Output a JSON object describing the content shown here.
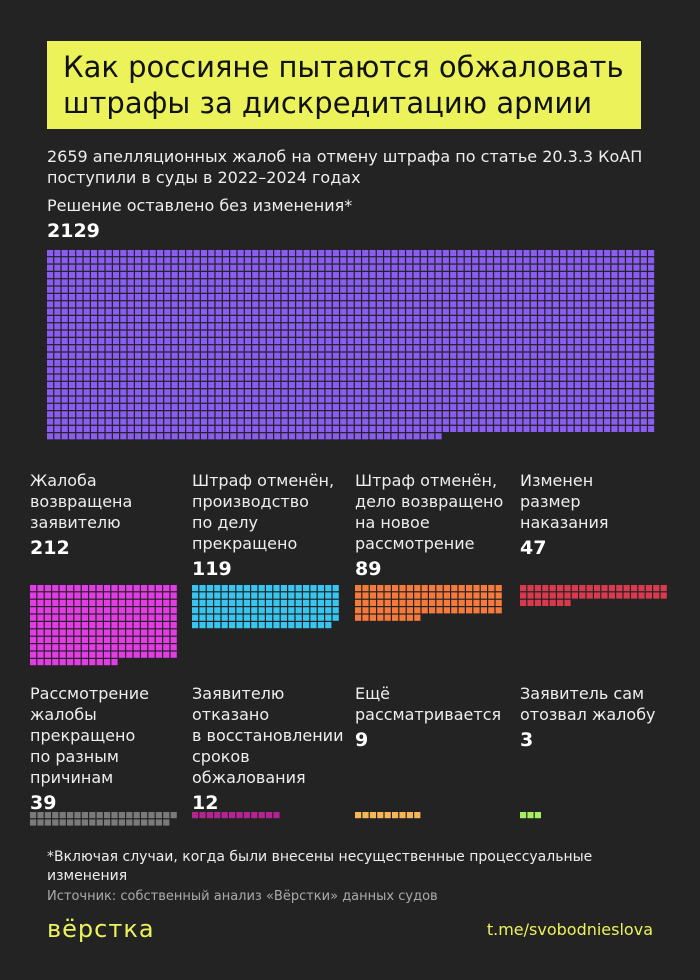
{
  "chart_data": {
    "type": "waffle",
    "title": "Как россияне пытаются обжаловать\nштрафы за дискредитацию армии",
    "subtitle": "2659 апелляционных жалоб на отмену штрафа по статье 20.3.3 КоАП поступили в суды в 2022–2024 годах",
    "categories": [
      "Решение оставлено без изменения*",
      "Жалоба\nвозвращена\nзаявителю",
      "Штраф отменён,\nпроизводство\nпо делу\nпрекращено",
      "Штраф отменён,\nдело возвращено\nна новое\nрассмотрение",
      "Изменен\nразмер\nнаказания",
      "Рассмотрение\nжалобы\nпрекращено\nпо разным\nпричинам",
      "Заявителю\nотказано\nв восстановлении\nсроков\nобжалования",
      "Ещё\nрассматривается",
      "Заявитель сам\nотозвал жалобу"
    ],
    "values": [
      2129,
      212,
      119,
      89,
      47,
      39,
      12,
      9,
      3
    ],
    "colors": [
      "#8a5cf2",
      "#e33be6",
      "#36c6f0",
      "#f57a3c",
      "#d93a4e",
      "#7a7a7a",
      "#b52292",
      "#f5b756",
      "#a6ee62"
    ],
    "note": "*Включая случаи, когда были внесены несущественные процессуальные изменения",
    "source": "Источник: собственный анализ «Вёрстки» данных судов",
    "brand": "вёрстка",
    "link": "t.me/svobodnieslova"
  }
}
